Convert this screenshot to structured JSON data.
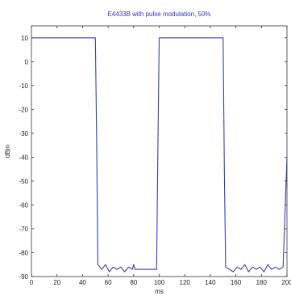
{
  "chart_data": {
    "type": "line",
    "title": "E4433B with pulse modulation, 50%",
    "xlabel": "ms",
    "ylabel": "dBm",
    "xlim": [
      0,
      200
    ],
    "ylim": [
      -90,
      15
    ],
    "xticks": [
      0,
      20,
      40,
      60,
      80,
      100,
      120,
      140,
      160,
      180,
      200
    ],
    "yticks": [
      10,
      0,
      -10,
      -20,
      -30,
      -40,
      -50,
      -60,
      -70,
      -80,
      -90
    ],
    "grid": false,
    "colors": {
      "line": "#3a3fb0",
      "title": "#2a36c8",
      "axes": "#333333"
    },
    "series": [
      {
        "x": [
          0,
          50,
          51,
          52,
          55,
          58,
          61,
          64,
          67,
          70,
          73,
          76,
          79,
          80,
          81,
          82,
          98,
          99,
          100,
          101,
          150,
          151,
          152,
          155,
          158,
          161,
          164,
          167,
          170,
          173,
          176,
          179,
          182,
          185,
          188,
          191,
          194,
          197,
          200
        ],
        "y": [
          10,
          10,
          -30,
          -85,
          -87,
          -85,
          -88,
          -86,
          -87,
          -86,
          -88,
          -86,
          -87,
          -85,
          -87,
          -87,
          -87,
          -35,
          10,
          10,
          10,
          -45,
          -86,
          -87,
          -88,
          -86,
          -87,
          -85,
          -88,
          -86,
          -87,
          -86,
          -88,
          -85,
          -87,
          -86,
          -87,
          -86,
          -40
        ]
      }
    ]
  }
}
